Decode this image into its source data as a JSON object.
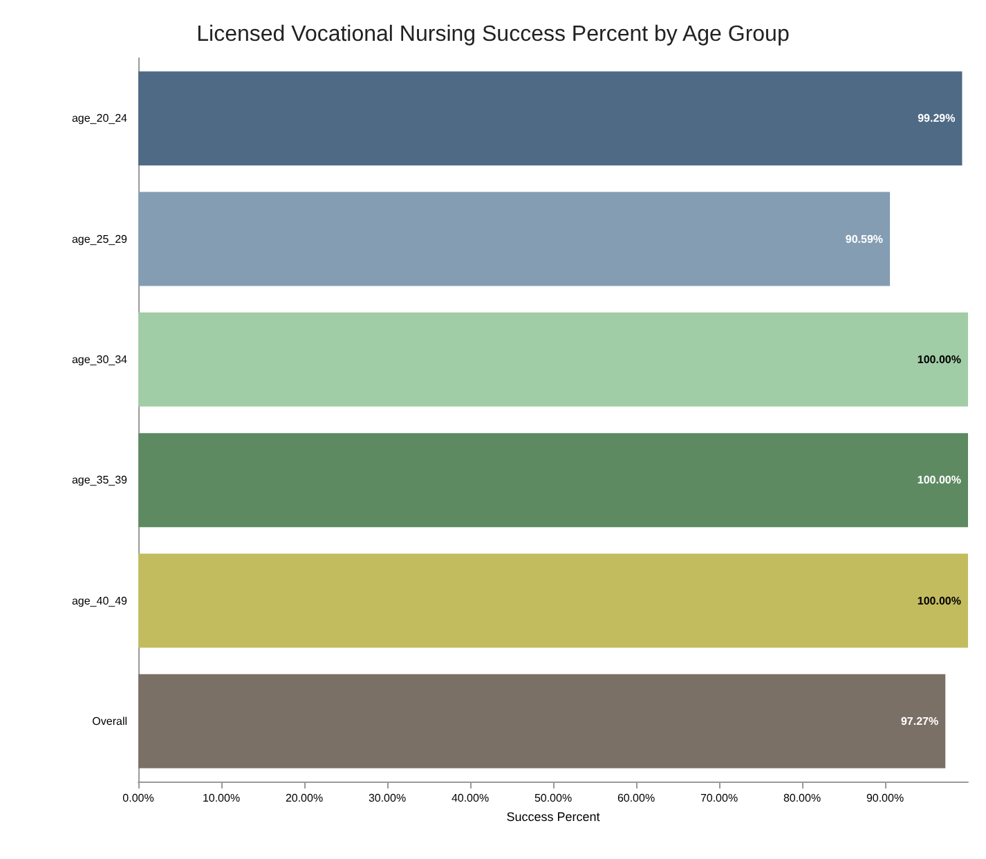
{
  "chart_data": {
    "type": "bar",
    "orientation": "horizontal",
    "title": "Licensed Vocational Nursing Success Percent by Age Group",
    "xlabel": "Success Percent",
    "categories": [
      "age_20_24",
      "age_25_29",
      "age_30_34",
      "age_35_39",
      "age_40_49",
      "Overall"
    ],
    "values": [
      99.29,
      90.59,
      100,
      100,
      100,
      97.27
    ],
    "colors": [
      "#4e6a85",
      "#849db3",
      "#a0cca6",
      "#5e8a62",
      "#c2bc5f",
      "#7b7066"
    ],
    "value_labels": [
      "99.29%",
      "90.59%",
      "100.00%",
      "100.00%",
      "100.00%",
      "97.27%"
    ],
    "xlim": [
      0,
      100
    ],
    "xticks": [
      {
        "value": 0,
        "label": "0.00%"
      },
      {
        "value": 10,
        "label": "10.00%"
      },
      {
        "value": 20,
        "label": "20.00%"
      },
      {
        "value": 30,
        "label": "30.00%"
      },
      {
        "value": 40,
        "label": "40.00%"
      },
      {
        "value": 50,
        "label": "50.00%"
      },
      {
        "value": 60,
        "label": "60.00%"
      },
      {
        "value": 70,
        "label": "70.00%"
      },
      {
        "value": 80,
        "label": "80.00%"
      },
      {
        "value": 90,
        "label": "90.00%"
      }
    ],
    "grid": false
  }
}
